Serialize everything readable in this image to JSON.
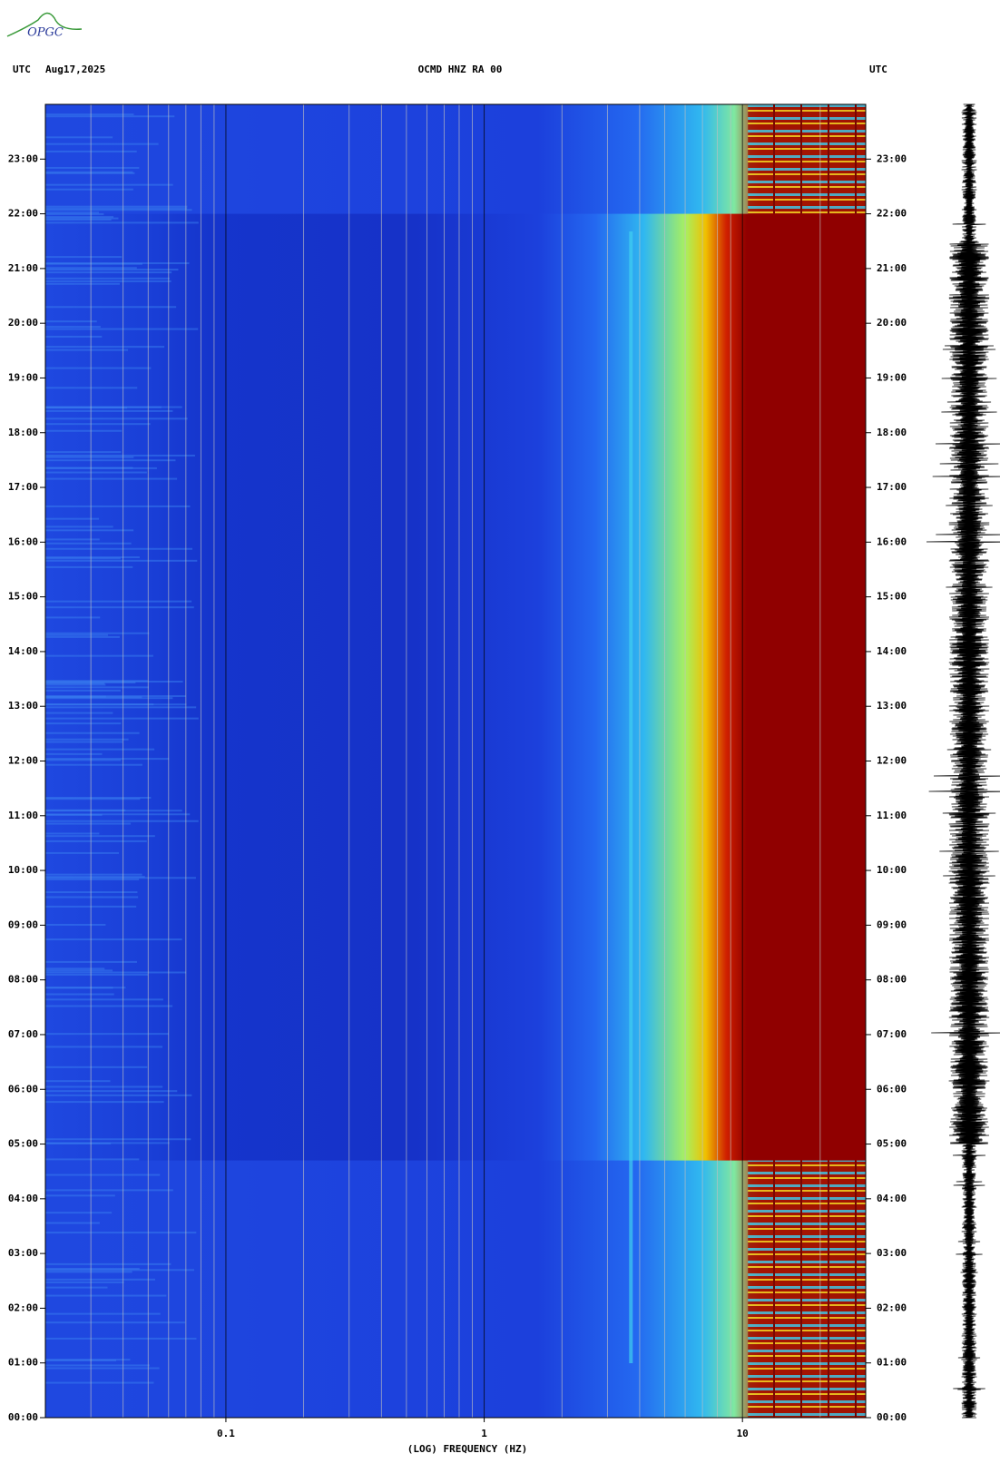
{
  "logo": "OPGC",
  "chart_data": {
    "type": "spectrogram",
    "title": "OCMD HNZ RA 00",
    "left_header": "UTC",
    "date": "Aug17,2025",
    "right_header": "UTC",
    "x_label": "(LOG) FREQUENCY (HZ)",
    "x_log": true,
    "xlim": [
      0.02,
      30
    ],
    "xticks": [
      0.1,
      1,
      10
    ],
    "xgrid": [
      0.03,
      0.04,
      0.05,
      0.06,
      0.07,
      0.08,
      0.09,
      0.1,
      0.2,
      0.3,
      0.4,
      0.5,
      0.6,
      0.7,
      0.8,
      0.9,
      1,
      2,
      3,
      4,
      5,
      6,
      7,
      8,
      9,
      10,
      20
    ],
    "ylim": [
      0,
      24
    ],
    "yticks": [
      {
        "value": 0,
        "label": "00:00"
      },
      {
        "value": 1,
        "label": "01:00"
      },
      {
        "value": 2,
        "label": "02:00"
      },
      {
        "value": 3,
        "label": "03:00"
      },
      {
        "value": 4,
        "label": "04:00"
      },
      {
        "value": 5,
        "label": "05:00"
      },
      {
        "value": 6,
        "label": "06:00"
      },
      {
        "value": 7,
        "label": "07:00"
      },
      {
        "value": 8,
        "label": "08:00"
      },
      {
        "value": 9,
        "label": "09:00"
      },
      {
        "value": 10,
        "label": "10:00"
      },
      {
        "value": 11,
        "label": "11:00"
      },
      {
        "value": 12,
        "label": "12:00"
      },
      {
        "value": 13,
        "label": "13:00"
      },
      {
        "value": 14,
        "label": "14:00"
      },
      {
        "value": 15,
        "label": "15:00"
      },
      {
        "value": 16,
        "label": "16:00"
      },
      {
        "value": 17,
        "label": "17:00"
      },
      {
        "value": 18,
        "label": "18:00"
      },
      {
        "value": 19,
        "label": "19:00"
      },
      {
        "value": 20,
        "label": "20:00"
      },
      {
        "value": 21,
        "label": "21:00"
      },
      {
        "value": 22,
        "label": "22:00"
      },
      {
        "value": 23,
        "label": "23:00"
      }
    ]
  }
}
